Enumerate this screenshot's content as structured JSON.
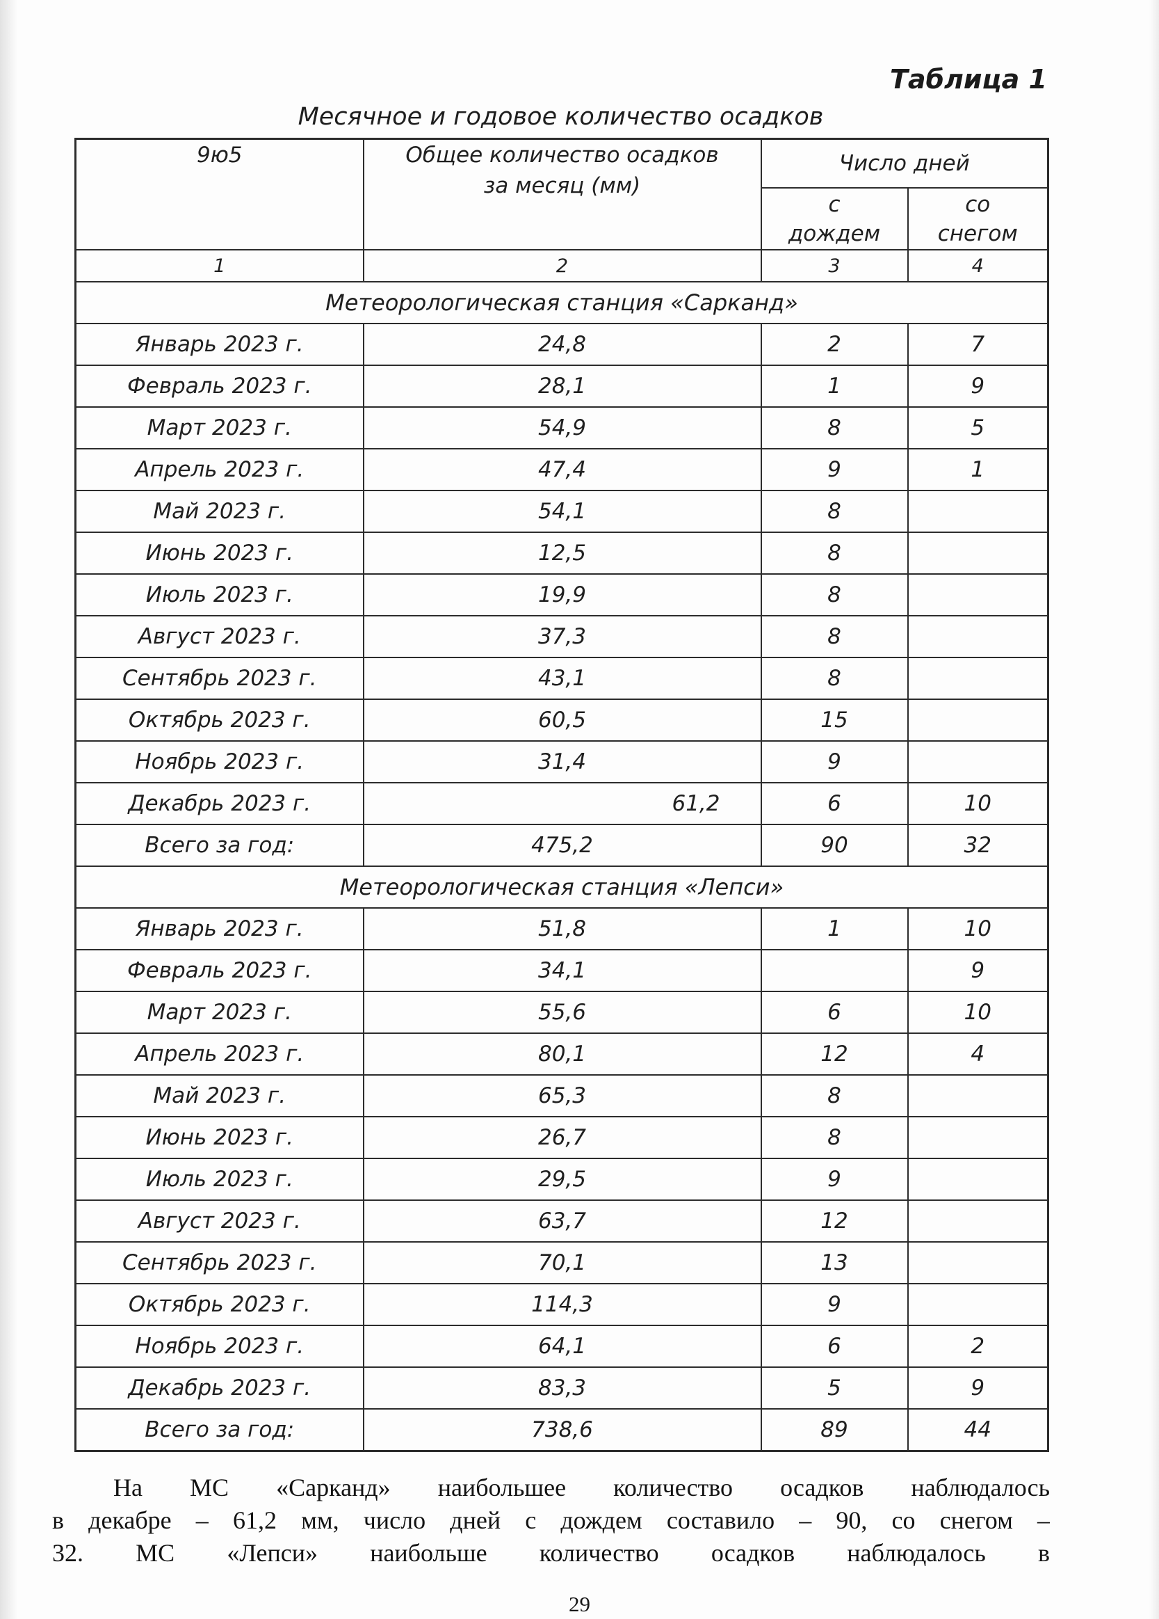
{
  "page": {
    "table_label": "Таблица 1",
    "table_title": "Месячное и годовое количество осадков",
    "page_number": "29"
  },
  "table": {
    "header": {
      "station_col": "9ю5",
      "precip_col_line1": "Общее количество осадков",
      "precip_col_line2": "за месяц (мм)",
      "days_group": "Число дней",
      "rain_line1": "с",
      "rain_line2": "дождем",
      "snow_line1": "со",
      "snow_line2": "снегом"
    },
    "column_numbers": [
      "1",
      "2",
      "3",
      "4"
    ],
    "sections": [
      {
        "title": "Метеорологическая станция «Сарканд»",
        "rows": [
          {
            "month": "Январь 2023 г.",
            "precip": "24,8",
            "rain": "2",
            "snow": "7"
          },
          {
            "month": "Февраль 2023 г.",
            "precip": "28,1",
            "rain": "1",
            "snow": "9"
          },
          {
            "month": "Март 2023 г.",
            "precip": "54,9",
            "rain": "8",
            "snow": "5"
          },
          {
            "month": "Апрель 2023 г.",
            "precip": "47,4",
            "rain": "9",
            "snow": "1"
          },
          {
            "month": "Май 2023 г.",
            "precip": "54,1",
            "rain": "8",
            "snow": ""
          },
          {
            "month": "Июнь 2023 г.",
            "precip": "12,5",
            "rain": "8",
            "snow": ""
          },
          {
            "month": "Июль 2023 г.",
            "precip": "19,9",
            "rain": "8",
            "snow": ""
          },
          {
            "month": "Август 2023 г.",
            "precip": "37,3",
            "rain": "8",
            "snow": ""
          },
          {
            "month": "Сентябрь 2023 г.",
            "precip": "43,1",
            "rain": "8",
            "snow": ""
          },
          {
            "month": "Октябрь 2023 г.",
            "precip": "60,5",
            "rain": "15",
            "snow": ""
          },
          {
            "month": "Ноябрь 2023 г.",
            "precip": "31,4",
            "rain": "9",
            "snow": ""
          },
          {
            "month": "Декабрь 2023 г.",
            "precip": "61,2",
            "rain": "6",
            "snow": "10",
            "precip_align": "right"
          },
          {
            "month": "Всего за год:",
            "precip": "475,2",
            "rain": "90",
            "snow": "32"
          }
        ]
      },
      {
        "title": "Метеорологическая станция «Лепси»",
        "rows": [
          {
            "month": "Январь 2023 г.",
            "precip": "51,8",
            "rain": "1",
            "snow": "10"
          },
          {
            "month": "Февраль 2023 г.",
            "precip": "34,1",
            "rain": "",
            "snow": "9"
          },
          {
            "month": "Март 2023 г.",
            "precip": "55,6",
            "rain": "6",
            "snow": "10"
          },
          {
            "month": "Апрель 2023 г.",
            "precip": "80,1",
            "rain": "12",
            "snow": "4"
          },
          {
            "month": "Май 2023 г.",
            "precip": "65,3",
            "rain": "8",
            "snow": ""
          },
          {
            "month": "Июнь 2023 г.",
            "precip": "26,7",
            "rain": "8",
            "snow": ""
          },
          {
            "month": "Июль 2023 г.",
            "precip": "29,5",
            "rain": "9",
            "snow": ""
          },
          {
            "month": "Август 2023 г.",
            "precip": "63,7",
            "rain": "12",
            "snow": ""
          },
          {
            "month": "Сентябрь 2023 г.",
            "precip": "70,1",
            "rain": "13",
            "snow": ""
          },
          {
            "month": "Октябрь 2023 г.",
            "precip": "114,3",
            "rain": "9",
            "snow": ""
          },
          {
            "month": "Ноябрь 2023 г.",
            "precip": "64,1",
            "rain": "6",
            "snow": "2"
          },
          {
            "month": "Декабрь 2023 г.",
            "precip": "83,3",
            "rain": "5",
            "snow": "9"
          },
          {
            "month": "Всего за год:",
            "precip": "738,6",
            "rain": "89",
            "snow": "44"
          }
        ]
      }
    ]
  },
  "paragraph": {
    "lines": [
      "На МС «Сарканд» наибольшее количество осадков наблюдалось",
      "в декабре – 61,2 мм, число дней с дождем составило – 90, со снегом –",
      "32. МС «Лепси» наибольше количество осадков наблюдалось в"
    ]
  },
  "colors": {
    "text": "#202020",
    "border": "#2c2c2c",
    "paper": "#fdfdfd"
  }
}
